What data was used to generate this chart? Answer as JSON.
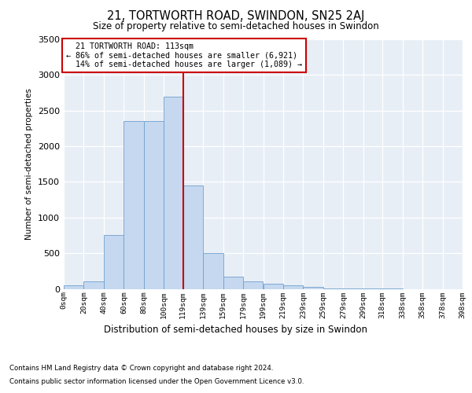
{
  "title": "21, TORTWORTH ROAD, SWINDON, SN25 2AJ",
  "subtitle": "Size of property relative to semi-detached houses in Swindon",
  "xlabel": "Distribution of semi-detached houses by size in Swindon",
  "ylabel": "Number of semi-detached properties",
  "footnote1": "Contains HM Land Registry data © Crown copyright and database right 2024.",
  "footnote2": "Contains public sector information licensed under the Open Government Licence v3.0.",
  "property_label": "21 TORTWORTH ROAD: 113sqm",
  "pct_smaller": 86,
  "n_smaller": 6921,
  "pct_larger": 14,
  "n_larger": 1089,
  "red_line_x": 119,
  "bar_color": "#c5d8f0",
  "bar_edge_color": "#6fa0cc",
  "red_line_color": "#cc0000",
  "annotation_box_color": "#cc0000",
  "background_color": "#e8eef6",
  "ylim": [
    0,
    3500
  ],
  "yticks": [
    0,
    500,
    1000,
    1500,
    2000,
    2500,
    3000,
    3500
  ],
  "bin_edges": [
    0,
    20,
    40,
    60,
    80,
    100,
    119,
    139,
    159,
    179,
    199,
    219,
    239,
    259,
    279,
    299,
    318,
    338,
    358,
    378,
    398
  ],
  "bin_labels": [
    "0sqm",
    "20sqm",
    "40sqm",
    "60sqm",
    "80sqm",
    "100sqm",
    "119sqm",
    "139sqm",
    "159sqm",
    "179sqm",
    "199sqm",
    "219sqm",
    "239sqm",
    "259sqm",
    "279sqm",
    "299sqm",
    "318sqm",
    "338sqm",
    "358sqm",
    "378sqm",
    "398sqm"
  ],
  "counts": [
    50,
    100,
    750,
    2350,
    2350,
    2700,
    1450,
    500,
    175,
    100,
    75,
    50,
    30,
    10,
    5,
    3,
    2,
    0,
    0,
    0
  ]
}
